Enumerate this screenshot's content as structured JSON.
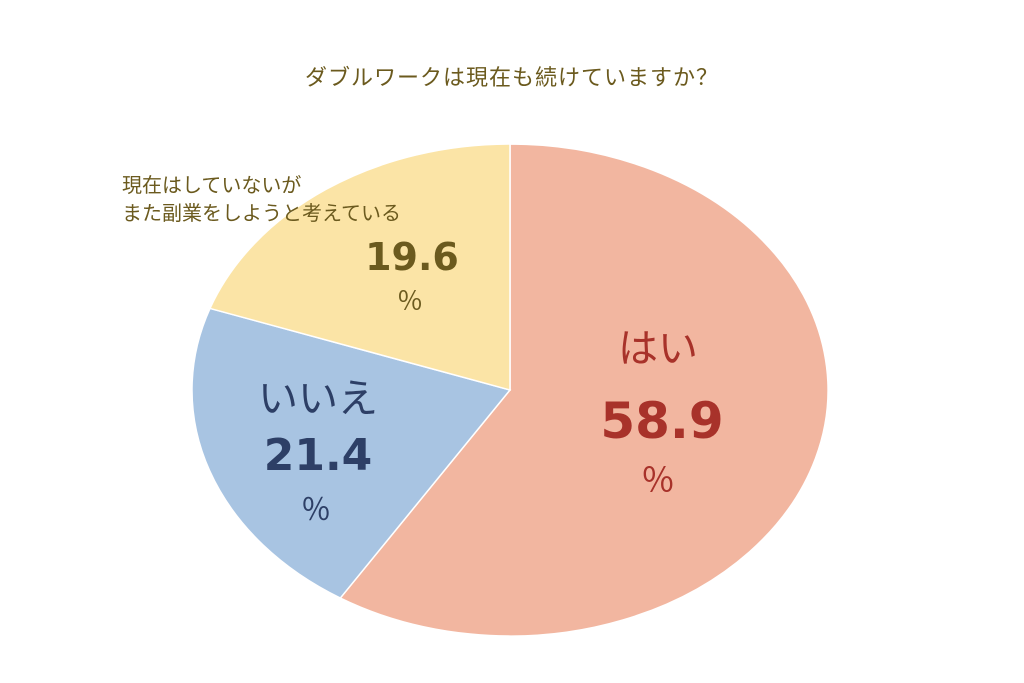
{
  "chart_data": {
    "type": "pie",
    "title": "ダブルワークは現在も続けていますか？",
    "unit": "％",
    "slices": [
      {
        "label": "はい",
        "value": 58.9,
        "value_text": "58.9",
        "color": "#f2b6a0",
        "label_color": "#a8322a",
        "value_color": "#a8322a",
        "unit_color": "#a8322a"
      },
      {
        "label": "いいえ",
        "value": 21.4,
        "value_text": "21.4",
        "color": "#a8c4e2",
        "label_color": "#2d3f66",
        "value_color": "#2d3f66",
        "unit_color": "#2d3f66"
      },
      {
        "label_lines": [
          "現在はしていないが",
          "また副業をしようと考えている"
        ],
        "value": 19.6,
        "value_text": "19.6",
        "color": "#fbe4a6",
        "label_color": "#6b5a1e",
        "value_color": "#6b5a1e",
        "unit_color": "#6b5a1e"
      }
    ],
    "start": "12 o'clock",
    "direction": "clockwise"
  }
}
